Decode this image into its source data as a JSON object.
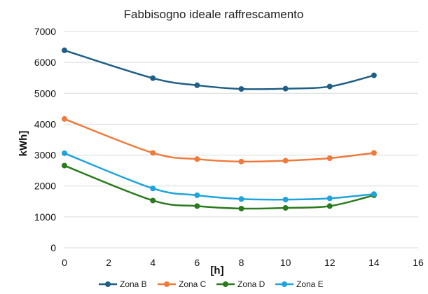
{
  "chart_data": {
    "type": "line",
    "title": "Fabbisogno ideale raffrescamento",
    "xlabel": "[h]",
    "ylabel": "kWh]",
    "xlim": [
      0,
      16
    ],
    "ylim": [
      0,
      7000
    ],
    "xticks": [
      0,
      2,
      4,
      6,
      8,
      10,
      12,
      14,
      16
    ],
    "yticks": [
      0,
      1000,
      2000,
      3000,
      4000,
      5000,
      6000,
      7000
    ],
    "grid": true,
    "legend_position": "bottom",
    "x": [
      0,
      4,
      6,
      8,
      10,
      12,
      14
    ],
    "series": [
      {
        "name": "Zona B",
        "color": "#1f5f85",
        "values": [
          6390,
          5490,
          5260,
          5140,
          5150,
          5220,
          5580
        ]
      },
      {
        "name": "Zona C",
        "color": "#ee7a3c",
        "values": [
          4170,
          3070,
          2870,
          2790,
          2820,
          2900,
          3070
        ]
      },
      {
        "name": "Zona D",
        "color": "#2a7a1e",
        "values": [
          2660,
          1530,
          1350,
          1270,
          1290,
          1350,
          1700
        ]
      },
      {
        "name": "Zona E",
        "color": "#1ea3dc",
        "values": [
          3060,
          1920,
          1700,
          1580,
          1560,
          1600,
          1740
        ]
      }
    ]
  }
}
